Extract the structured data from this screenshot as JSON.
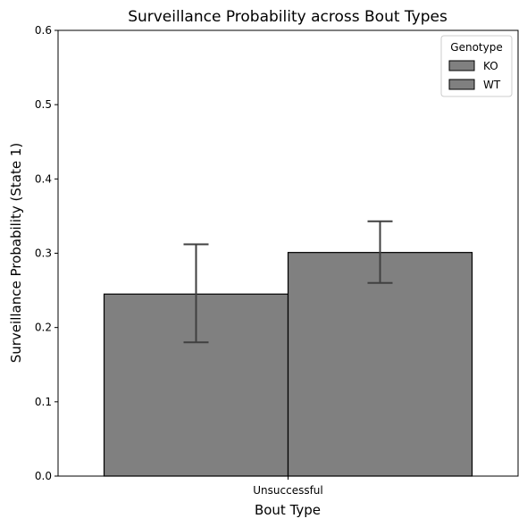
{
  "chart_data": {
    "type": "bar",
    "title": "Surveillance Probability across Bout Types",
    "xlabel": "Bout Type",
    "ylabel": "Surveillance Probability (State 1)",
    "categories": [
      "Unsuccessful"
    ],
    "ylim": [
      0,
      0.6
    ],
    "yticks": [
      "0.0",
      "0.1",
      "0.2",
      "0.3",
      "0.4",
      "0.5",
      "0.6"
    ],
    "legend": {
      "title": "Genotype",
      "placement": "top-right",
      "entries": [
        "KO",
        "WT"
      ]
    },
    "series": [
      {
        "name": "KO",
        "values": [
          0.245
        ],
        "error_low": [
          0.18
        ],
        "error_high": [
          0.312
        ],
        "color": "#808080"
      },
      {
        "name": "WT",
        "values": [
          0.301
        ],
        "error_low": [
          0.26
        ],
        "error_high": [
          0.343
        ],
        "color": "#808080"
      }
    ],
    "grid": false,
    "colors": {
      "bar_edge": "#000000",
      "errorbar": "#404040"
    }
  }
}
